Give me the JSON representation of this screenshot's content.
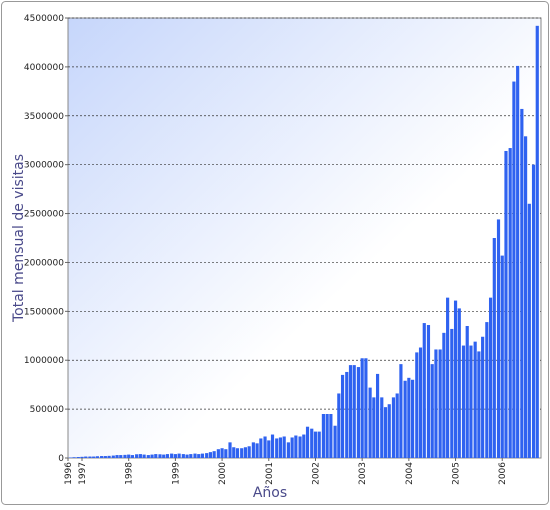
{
  "chart_data": {
    "type": "bar",
    "x_label": "Años",
    "y_label": "Total mensual de visitas",
    "color": "#2f62f0",
    "grid": true,
    "xlim": [
      1996.7,
      2006.83
    ],
    "xticks": [
      {
        "value": 1996.7,
        "label": "1996"
      },
      1997,
      1998,
      1999,
      2000,
      2001,
      2002,
      2003,
      2004,
      2005,
      2006
    ],
    "ylim": [
      0,
      4500000
    ],
    "yticks": [
      0,
      500000,
      1000000,
      1500000,
      2000000,
      2500000,
      3000000,
      3500000,
      4000000,
      4500000
    ],
    "x": [
      1996.75,
      1996.83,
      1996.92,
      1997,
      1997.08,
      1997.17,
      1997.25,
      1997.33,
      1997.42,
      1997.5,
      1997.58,
      1997.67,
      1997.75,
      1997.83,
      1997.92,
      1998,
      1998.08,
      1998.17,
      1998.25,
      1998.33,
      1998.42,
      1998.5,
      1998.58,
      1998.67,
      1998.75,
      1998.83,
      1998.92,
      1999,
      1999.08,
      1999.17,
      1999.25,
      1999.33,
      1999.42,
      1999.5,
      1999.58,
      1999.67,
      1999.75,
      1999.83,
      1999.92,
      2000,
      2000.08,
      2000.17,
      2000.25,
      2000.33,
      2000.42,
      2000.5,
      2000.58,
      2000.67,
      2000.75,
      2000.83,
      2000.92,
      2001,
      2001.08,
      2001.17,
      2001.25,
      2001.33,
      2001.42,
      2001.5,
      2001.58,
      2001.67,
      2001.75,
      2001.83,
      2001.92,
      2002,
      2002.08,
      2002.17,
      2002.25,
      2002.33,
      2002.42,
      2002.5,
      2002.58,
      2002.67,
      2002.75,
      2002.83,
      2002.92,
      2003,
      2003.08,
      2003.17,
      2003.25,
      2003.33,
      2003.42,
      2003.5,
      2003.58,
      2003.67,
      2003.75,
      2003.83,
      2003.92,
      2004,
      2004.08,
      2004.17,
      2004.25,
      2004.33,
      2004.42,
      2004.5,
      2004.58,
      2004.67,
      2004.75,
      2004.83,
      2004.92,
      2005,
      2005.08,
      2005.17,
      2005.25,
      2005.33,
      2005.42,
      2005.5,
      2005.58,
      2005.67,
      2005.75,
      2005.83,
      2005.92,
      2006,
      2006.08,
      2006.17,
      2006.25,
      2006.33,
      2006.42,
      2006.5,
      2006.58,
      2006.67,
      2006.75
    ],
    "values": [
      5000,
      8000,
      10000,
      12000,
      15000,
      15000,
      15000,
      18000,
      20000,
      20000,
      22000,
      25000,
      30000,
      30000,
      32000,
      35000,
      30000,
      38000,
      40000,
      35000,
      30000,
      35000,
      40000,
      38000,
      35000,
      40000,
      45000,
      40000,
      45000,
      40000,
      35000,
      40000,
      45000,
      40000,
      45000,
      50000,
      60000,
      70000,
      90000,
      100000,
      90000,
      160000,
      110000,
      100000,
      100000,
      110000,
      120000,
      160000,
      150000,
      200000,
      220000,
      180000,
      240000,
      200000,
      210000,
      220000,
      160000,
      210000,
      230000,
      220000,
      240000,
      320000,
      300000,
      270000,
      270000,
      450000,
      450000,
      450000,
      330000,
      660000,
      850000,
      880000,
      950000,
      950000,
      930000,
      1020000,
      1020000,
      720000,
      620000,
      860000,
      620000,
      520000,
      550000,
      620000,
      660000,
      960000,
      790000,
      820000,
      800000,
      1080000,
      1130000,
      1380000,
      1360000,
      960000,
      1110000,
      1110000,
      1280000,
      1640000,
      1320000,
      1610000,
      1530000,
      1150000,
      1350000,
      1150000,
      1190000,
      1090000,
      1240000,
      1390000,
      1640000,
      2250000,
      2440000,
      2070000,
      3140000,
      3170000,
      3850000,
      4010000,
      3570000,
      3290000,
      2600000,
      3000000,
      4420000
    ]
  }
}
